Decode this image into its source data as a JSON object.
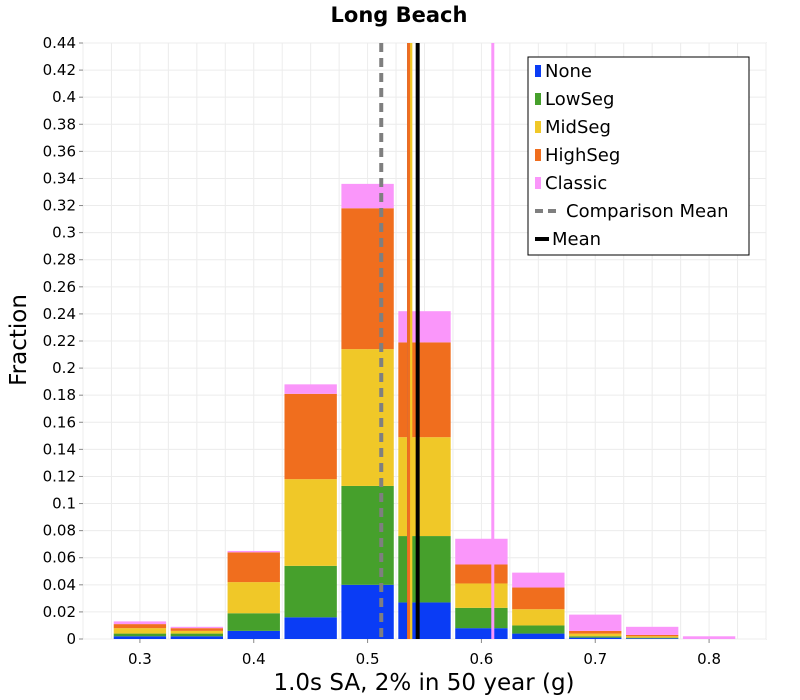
{
  "chart_data": {
    "type": "bar",
    "title": "Long Beach",
    "xlabel": "1.0s SA, 2% in 50 year (g)",
    "ylabel": "Fraction",
    "xlim": [
      0.25,
      0.85
    ],
    "ylim": [
      0,
      0.44
    ],
    "xticks": [
      "0.3",
      "0.4",
      "0.5",
      "0.6",
      "0.7",
      "0.8"
    ],
    "yticks": [
      "0",
      "0.02",
      "0.04",
      "0.06",
      "0.08",
      "0.1",
      "0.12",
      "0.14",
      "0.16",
      "0.18",
      "0.2",
      "0.22",
      "0.24",
      "0.26",
      "0.28",
      "0.3",
      "0.32",
      "0.34",
      "0.36",
      "0.38",
      "0.4",
      "0.42",
      "0.44"
    ],
    "grid": true,
    "stacked": true,
    "legend_position": "top-right",
    "bin_width": 0.05,
    "bin_centers": [
      0.3,
      0.35,
      0.4,
      0.45,
      0.5,
      0.55,
      0.6,
      0.65,
      0.7,
      0.75,
      0.8
    ],
    "series": [
      {
        "name": "None",
        "color": "#0a3cf5",
        "values": [
          0.002,
          0.002,
          0.006,
          0.016,
          0.04,
          0.027,
          0.008,
          0.004,
          0.001,
          0.0005,
          0.0
        ]
      },
      {
        "name": "LowSeg",
        "color": "#46a02c",
        "values": [
          0.002,
          0.002,
          0.013,
          0.038,
          0.073,
          0.049,
          0.015,
          0.006,
          0.001,
          0.0005,
          0.0
        ]
      },
      {
        "name": "MidSeg",
        "color": "#f0c828",
        "values": [
          0.004,
          0.002,
          0.023,
          0.064,
          0.101,
          0.073,
          0.018,
          0.012,
          0.002,
          0.001,
          0.0
        ]
      },
      {
        "name": "HighSeg",
        "color": "#f06e1e",
        "values": [
          0.003,
          0.002,
          0.022,
          0.063,
          0.104,
          0.07,
          0.014,
          0.016,
          0.002,
          0.001,
          0.0
        ]
      },
      {
        "name": "Classic",
        "color": "#fa96fa",
        "values": [
          0.002,
          0.001,
          0.001,
          0.007,
          0.018,
          0.023,
          0.019,
          0.011,
          0.012,
          0.006,
          0.002
        ]
      }
    ],
    "series_vlines": [
      {
        "series": "None",
        "x": 0.536
      },
      {
        "series": "LowSeg",
        "x": 0.537
      },
      {
        "series": "MidSeg",
        "x": 0.538
      },
      {
        "series": "HighSeg",
        "x": 0.536
      },
      {
        "series": "Classic",
        "x": 0.61
      }
    ],
    "comparison_mean": {
      "name": "Comparison Mean",
      "x": 0.512,
      "color": "#7f7f7f"
    },
    "mean": {
      "name": "Mean",
      "x": 0.544,
      "color": "#000000"
    }
  }
}
